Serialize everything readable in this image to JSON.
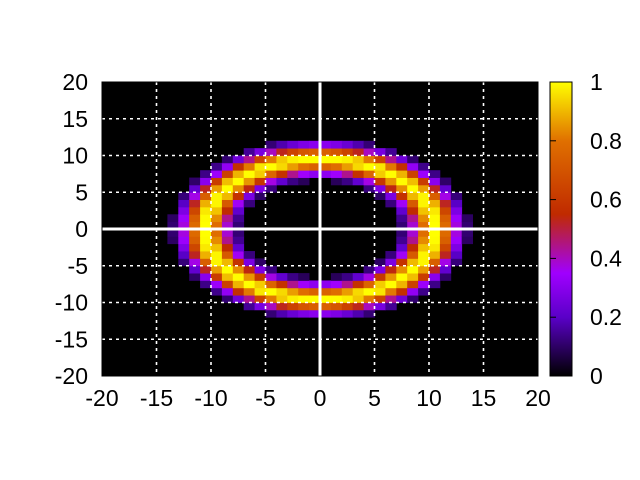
{
  "chart_data": {
    "type": "heatmap",
    "title": "",
    "xlabel": "",
    "ylabel": "",
    "xlim": [
      -20,
      20
    ],
    "ylim": [
      -20,
      20
    ],
    "x_ticks": [
      "-20",
      "-15",
      "-10",
      "-5",
      "0",
      "5",
      "10",
      "15",
      "20"
    ],
    "y_ticks": [
      "20",
      "15",
      "10",
      "5",
      "0",
      "-5",
      "-10",
      "-15",
      "-20"
    ],
    "colorbar": {
      "range": [
        0,
        1
      ],
      "ticks": [
        "1",
        "0.8",
        "0.6",
        "0.4",
        "0.2",
        "0"
      ],
      "palette": [
        "#000000",
        "#5a00c8",
        "#a000ff",
        "#c02a00",
        "#e07000",
        "#ffff00"
      ]
    },
    "grid": true,
    "grid_style": "dashed white",
    "background": "#000000",
    "axes_zero_lines": true,
    "function": "ring: value = exp(-((sqrt((x/1.1)^2 + y^2) - 9.5)^2) / (2*1.3^2))",
    "ring": {
      "center": [
        0,
        0
      ],
      "x_radius": 10.5,
      "y_radius": 9.5,
      "width": 3
    },
    "cell_size": 1
  }
}
